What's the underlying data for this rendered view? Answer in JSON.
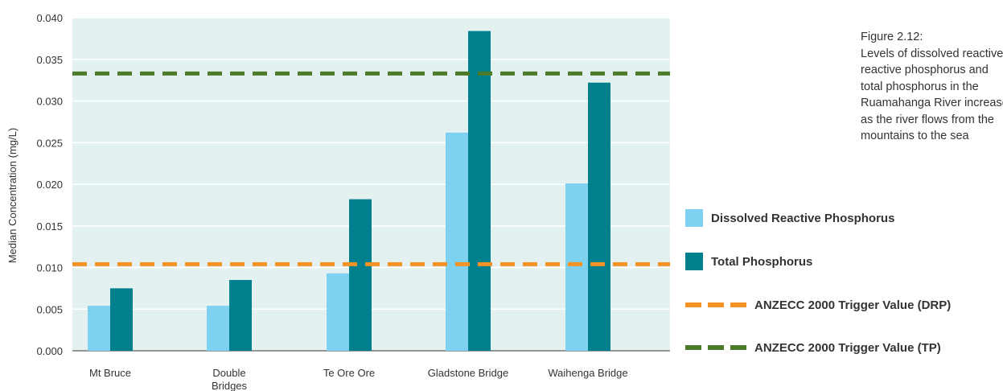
{
  "chart_data": {
    "type": "bar",
    "ylabel": "Median Concentration  (mg/L)",
    "ylim": [
      0,
      0.04
    ],
    "yticks": [
      "0.000",
      "0.005",
      "0.010",
      "0.015",
      "0.020",
      "0.025",
      "0.030",
      "0.035",
      "0.040"
    ],
    "categories": [
      {
        "line1": "Mt Bruce",
        "line2": ""
      },
      {
        "line1": "Double",
        "line2": "Bridges"
      },
      {
        "line1": "Te Ore Ore",
        "line2": ""
      },
      {
        "line1": "Gladstone Bridge",
        "line2": ""
      },
      {
        "line1": "Waihenga Bridge",
        "line2": ""
      }
    ],
    "series": [
      {
        "name": "Dissolved Reactive Phosphorus",
        "color": "#7fd1f2",
        "values": [
          0.0054,
          0.0054,
          0.0093,
          0.0262,
          0.0201
        ]
      },
      {
        "name": "Total Phosphorus",
        "color": "#00808c",
        "values": [
          0.0075,
          0.0085,
          0.0182,
          0.0384,
          0.0322
        ]
      }
    ],
    "reference_lines": [
      {
        "name": "ANZECC 2000 Trigger Value (DRP)",
        "value": 0.0104,
        "color": "#f39325"
      },
      {
        "name": "ANZECC 2000 Trigger Value (TP)",
        "value": 0.0333,
        "color": "#4b7a2a"
      }
    ],
    "plot_background": "#e3f1f1",
    "gridlines": true,
    "legend_position": "right"
  },
  "caption": {
    "lines": [
      "Figure 2.12:",
      "Levels of dissolved reactive",
      "reactive phosphorus and",
      "total phosphorus in the",
      "Ruamahanga River increase",
      "as the river flows from the",
      "mountains to the sea"
    ]
  }
}
